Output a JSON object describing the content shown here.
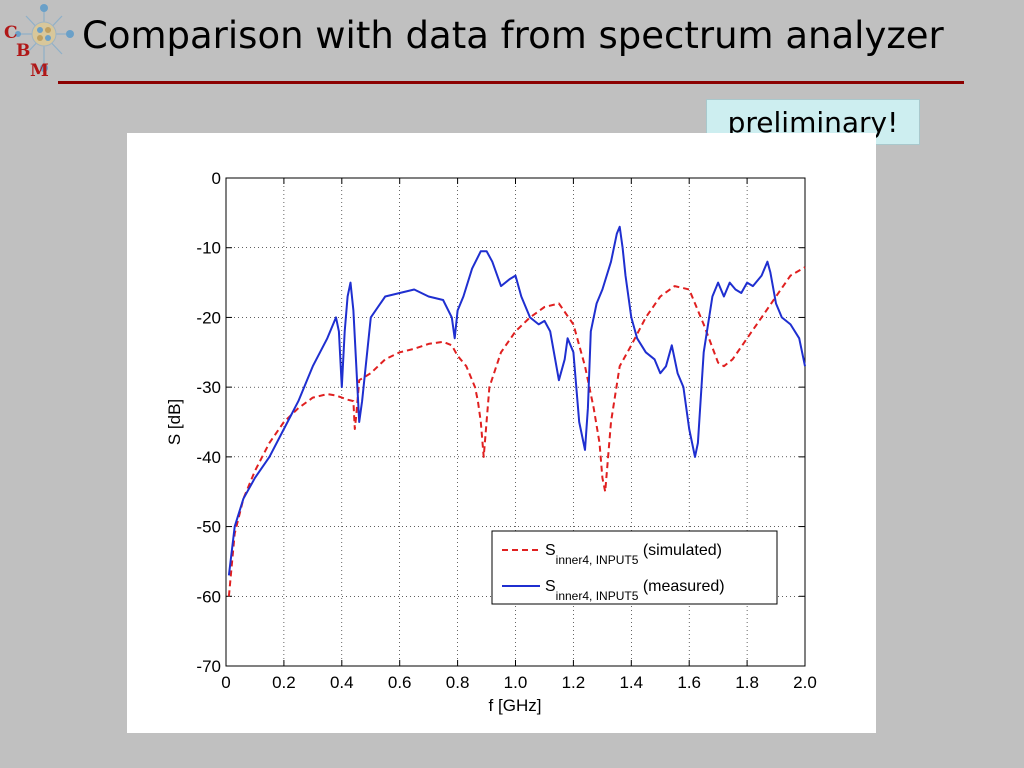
{
  "slide": {
    "title": "Comparison with data from spectrum analyzer",
    "badge": "preliminary!",
    "logo": {
      "letters": [
        "C",
        "B",
        "M"
      ],
      "icon": "molecule-logo-icon"
    }
  },
  "colors": {
    "background": "#c0c0c0",
    "title_rule": "#8b0000",
    "badge_bg": "#cdeef0",
    "simulated": "#e02020",
    "measured": "#1f2fd0"
  },
  "chart_data": {
    "type": "line",
    "xlabel": "f [GHz]",
    "ylabel": "S [dB]",
    "xlim": [
      0,
      2.0
    ],
    "ylim": [
      -70,
      0
    ],
    "xticks": [
      0,
      0.2,
      0.4,
      0.6,
      0.8,
      1.0,
      1.2,
      1.4,
      1.6,
      1.8,
      2.0
    ],
    "xtick_labels": [
      "0",
      "0.2",
      "0.4",
      "0.6",
      "0.8",
      "1.0",
      "1.2",
      "1.4",
      "1.6",
      "1.8",
      "2.0"
    ],
    "yticks": [
      0,
      -10,
      -20,
      -30,
      -40,
      -50,
      -60,
      -70
    ],
    "ytick_labels": [
      "0",
      "-10",
      "-20",
      "-30",
      "-40",
      "-50",
      "-60",
      "-70"
    ],
    "grid": true,
    "legend_position": "lower-right",
    "series": [
      {
        "name": "S",
        "name_sub": "inner4, INPUT5",
        "name_suffix": " (simulated)",
        "style": "dashed",
        "color": "#e02020",
        "x": [
          0.01,
          0.03,
          0.06,
          0.1,
          0.15,
          0.2,
          0.25,
          0.3,
          0.35,
          0.38,
          0.4,
          0.42,
          0.44,
          0.445,
          0.45,
          0.46,
          0.5,
          0.55,
          0.6,
          0.65,
          0.7,
          0.75,
          0.78,
          0.8,
          0.83,
          0.86,
          0.87,
          0.88,
          0.89,
          0.91,
          0.95,
          1.0,
          1.05,
          1.1,
          1.15,
          1.2,
          1.24,
          1.27,
          1.29,
          1.3,
          1.31,
          1.33,
          1.36,
          1.4,
          1.45,
          1.5,
          1.55,
          1.6,
          1.65,
          1.7,
          1.72,
          1.75,
          1.8,
          1.85,
          1.9,
          1.95,
          2.0
        ],
        "y": [
          -60,
          -51,
          -46,
          -42,
          -38,
          -35,
          -33,
          -31.5,
          -31,
          -31.2,
          -31.5,
          -31.8,
          -32,
          -36,
          -34,
          -29,
          -28,
          -26,
          -25,
          -24.5,
          -23.8,
          -23.5,
          -24,
          -25.5,
          -27,
          -30,
          -32,
          -35,
          -40,
          -30,
          -25,
          -22,
          -20,
          -18.5,
          -18,
          -21,
          -27,
          -33,
          -38,
          -43,
          -45,
          -35,
          -27,
          -24,
          -20,
          -17,
          -15.5,
          -16,
          -21,
          -26.5,
          -27,
          -26,
          -23,
          -20,
          -17,
          -14,
          -12.8
        ]
      },
      {
        "name": "S",
        "name_sub": "inner4, INPUT5",
        "name_suffix": " (measured)",
        "style": "solid",
        "color": "#1f2fd0",
        "x": [
          0.01,
          0.03,
          0.06,
          0.1,
          0.15,
          0.2,
          0.25,
          0.3,
          0.35,
          0.38,
          0.39,
          0.4,
          0.41,
          0.42,
          0.43,
          0.44,
          0.45,
          0.46,
          0.47,
          0.5,
          0.55,
          0.6,
          0.65,
          0.7,
          0.75,
          0.78,
          0.79,
          0.8,
          0.82,
          0.85,
          0.88,
          0.9,
          0.92,
          0.95,
          0.98,
          1.0,
          1.02,
          1.05,
          1.08,
          1.1,
          1.12,
          1.15,
          1.17,
          1.18,
          1.2,
          1.22,
          1.24,
          1.25,
          1.26,
          1.28,
          1.3,
          1.33,
          1.35,
          1.36,
          1.37,
          1.38,
          1.4,
          1.42,
          1.45,
          1.48,
          1.5,
          1.52,
          1.54,
          1.56,
          1.58,
          1.6,
          1.62,
          1.63,
          1.65,
          1.68,
          1.7,
          1.72,
          1.74,
          1.76,
          1.78,
          1.8,
          1.82,
          1.85,
          1.87,
          1.88,
          1.9,
          1.92,
          1.95,
          1.98,
          2.0
        ],
        "y": [
          -57,
          -50,
          -46,
          -43,
          -40,
          -36,
          -32,
          -27,
          -23,
          -20,
          -22,
          -30,
          -22,
          -17,
          -15,
          -19,
          -27,
          -35,
          -32,
          -20,
          -17,
          -16.5,
          -16,
          -17,
          -17.5,
          -20,
          -23,
          -19,
          -17,
          -13,
          -10.5,
          -10.5,
          -12,
          -15.5,
          -14.5,
          -14,
          -17,
          -20,
          -21,
          -20.5,
          -22,
          -29,
          -26,
          -23,
          -25,
          -35,
          -39,
          -33,
          -22,
          -18,
          -16,
          -12,
          -8,
          -7,
          -10,
          -14,
          -20,
          -23,
          -25,
          -26,
          -28,
          -27,
          -24,
          -28,
          -30,
          -36,
          -40,
          -38,
          -25,
          -17,
          -15,
          -17,
          -15,
          -16,
          -16.5,
          -15,
          -15.5,
          -14,
          -12,
          -13.5,
          -18,
          -20,
          -21,
          -23,
          -27
        ]
      }
    ]
  }
}
